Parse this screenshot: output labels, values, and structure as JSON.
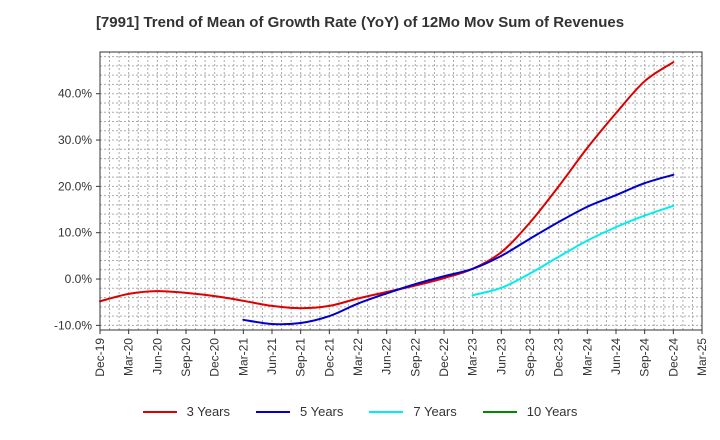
{
  "chart_data": {
    "type": "line",
    "title": "[7991]  Trend of Mean of Growth Rate (YoY) of 12Mo Mov Sum of Revenues",
    "xlabel": "",
    "ylabel": "",
    "ylim": [
      -0.11,
      0.49
    ],
    "yticks": [
      -0.1,
      0.0,
      0.1,
      0.2,
      0.3,
      0.4
    ],
    "ytick_labels": [
      "-10.0%",
      "0.0%",
      "10.0%",
      "20.0%",
      "30.0%",
      "40.0%"
    ],
    "categories": [
      "Dec-19",
      "Mar-20",
      "Jun-20",
      "Sep-20",
      "Dec-20",
      "Mar-21",
      "Jun-21",
      "Sep-21",
      "Dec-21",
      "Mar-22",
      "Jun-22",
      "Sep-22",
      "Dec-22",
      "Mar-23",
      "Jun-23",
      "Sep-23",
      "Dec-23",
      "Mar-24",
      "Jun-24",
      "Sep-24",
      "Dec-24",
      "Mar-25"
    ],
    "grid": true,
    "legend_position": "bottom",
    "series": [
      {
        "name": "3 Years",
        "color": "#dd0000",
        "values": [
          -0.048,
          -0.032,
          -0.026,
          -0.03,
          -0.037,
          -0.047,
          -0.058,
          -0.063,
          -0.058,
          -0.042,
          -0.028,
          -0.014,
          0.002,
          0.022,
          0.058,
          0.122,
          0.2,
          0.283,
          0.358,
          0.427,
          0.468,
          null
        ]
      },
      {
        "name": "5 Years",
        "color": "#0000cc",
        "values": [
          null,
          null,
          null,
          null,
          null,
          -0.088,
          -0.097,
          -0.095,
          -0.08,
          -0.053,
          -0.031,
          -0.011,
          0.006,
          0.022,
          0.05,
          0.087,
          0.123,
          0.156,
          0.181,
          0.207,
          0.225,
          null
        ]
      },
      {
        "name": "7 Years",
        "color": "#00eeee",
        "values": [
          null,
          null,
          null,
          null,
          null,
          null,
          null,
          null,
          null,
          null,
          null,
          null,
          null,
          -0.035,
          -0.019,
          0.012,
          0.048,
          0.083,
          0.112,
          0.137,
          0.158,
          null
        ]
      },
      {
        "name": "10 Years",
        "color": "#008800",
        "values": [
          null,
          null,
          null,
          null,
          null,
          null,
          null,
          null,
          null,
          null,
          null,
          null,
          null,
          null,
          null,
          null,
          null,
          null,
          null,
          null,
          null,
          null
        ]
      }
    ]
  }
}
